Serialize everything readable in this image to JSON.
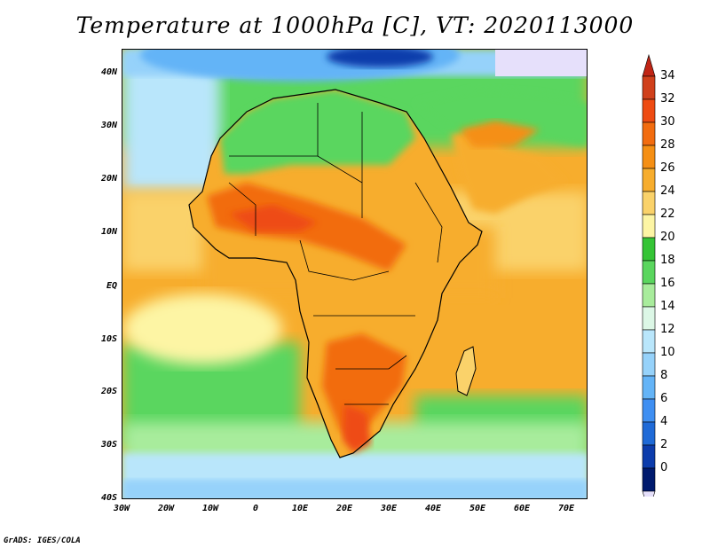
{
  "title": "Temperature at 1000hPa [C], VT: 2020113000",
  "credit": "GrADS: IGES/COLA",
  "lat_labels": [
    "40N",
    "30N",
    "20N",
    "10N",
    "EQ",
    "10S",
    "20S",
    "30S",
    "40S"
  ],
  "lon_labels": [
    "30W",
    "20W",
    "10W",
    "0",
    "10E",
    "20E",
    "30E",
    "40E",
    "50E",
    "60E",
    "70E"
  ],
  "colorbar": {
    "labels": [
      "34",
      "32",
      "30",
      "28",
      "26",
      "24",
      "22",
      "20",
      "18",
      "16",
      "14",
      "12",
      "10",
      "8",
      "6",
      "4",
      "2",
      "0"
    ],
    "colors": [
      "#d0401b",
      "#ee4b12",
      "#f26c0f",
      "#f58f14",
      "#f7ad2d",
      "#fad26a",
      "#fdf5a4",
      "#35c436",
      "#5ad65e",
      "#a8ec9c",
      "#dcf7e6",
      "#b9e6fb",
      "#96d2fa",
      "#64b4f7",
      "#3f8ff2",
      "#1f6ad7",
      "#0c3cac",
      "#001a6e"
    ],
    "top_triangle": "#c02515",
    "bottom_triangle": "#e6e0fb"
  }
}
